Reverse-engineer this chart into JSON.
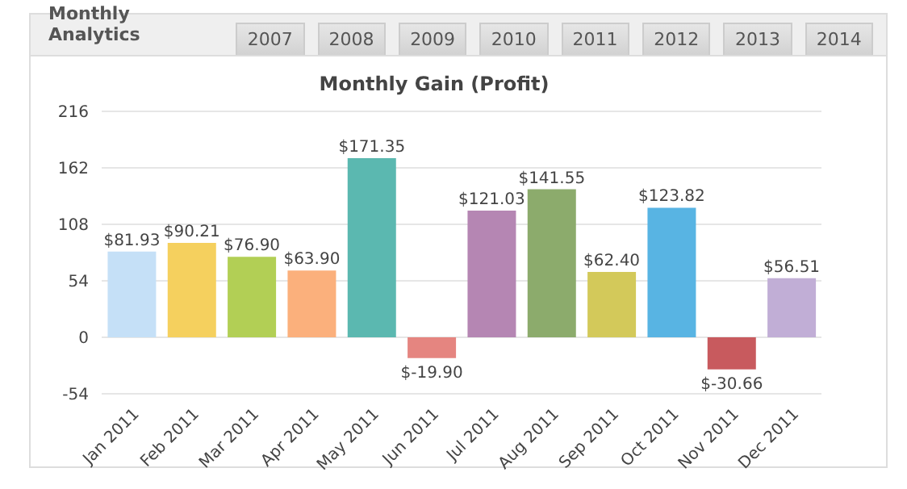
{
  "chart_data": {
    "type": "bar",
    "title": "Monthly Gain (Profit)",
    "annotations": [
      "Monthly Analytics",
      "2007",
      "2008",
      "2009",
      "2010",
      "2011",
      "2012",
      "2013",
      "2014"
    ],
    "categories": [
      "Jan 2011",
      "Feb 2011",
      "Mar 2011",
      "Apr 2011",
      "May 2011",
      "Jun 2011",
      "Jul 2011",
      "Aug 2011",
      "Sep 2011",
      "Oct 2011",
      "Nov 2011",
      "Dec 2011"
    ],
    "values": [
      81.93,
      90.21,
      76.9,
      63.9,
      171.35,
      -19.9,
      121.03,
      141.55,
      62.4,
      123.82,
      -30.66,
      56.51
    ],
    "value_labels": [
      "$81.93",
      "$90.21",
      "$76.90",
      "$63.90",
      "$171.35",
      "$-19.90",
      "$121.03",
      "$141.55",
      "$62.40",
      "$123.82",
      "$-30.66",
      "$56.51"
    ],
    "colors": [
      "#c5e0f7",
      "#f5d05e",
      "#b2cf55",
      "#fbb07c",
      "#5bb8b0",
      "#e58580",
      "#b586b3",
      "#8cab6c",
      "#d3c95a",
      "#58b4e3",
      "#c85a5e",
      "#c1aed6"
    ],
    "ylim": [
      -54,
      216
    ],
    "yticks": [
      -54,
      0,
      54,
      108,
      162,
      216
    ],
    "grid": "y"
  }
}
